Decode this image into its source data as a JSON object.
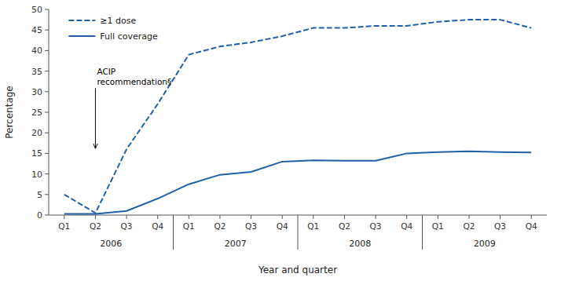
{
  "chart_data": {
    "type": "line",
    "categories": [
      "Q1",
      "Q2",
      "Q3",
      "Q4",
      "Q1",
      "Q2",
      "Q3",
      "Q4",
      "Q1",
      "Q2",
      "Q3",
      "Q4",
      "Q1",
      "Q2",
      "Q3",
      "Q4"
    ],
    "category_groups": [
      {
        "label": "2006",
        "size": 4
      },
      {
        "label": "2007",
        "size": 4
      },
      {
        "label": "2008",
        "size": 4
      },
      {
        "label": "2009",
        "size": 4
      }
    ],
    "series": [
      {
        "name": "≥1 dose",
        "color": "#2060a8",
        "line_style": "dashed",
        "values": [
          5.0,
          0.5,
          16.0,
          27.0,
          39.0,
          41.0,
          42.0,
          43.5,
          45.5,
          45.5,
          46.0,
          46.0,
          47.0,
          47.5,
          47.5,
          45.5
        ]
      },
      {
        "name": "Full coverage",
        "color": "#2060a8",
        "line_style": "solid",
        "values": [
          0.3,
          0.3,
          1.0,
          4.0,
          7.5,
          9.8,
          10.5,
          13.0,
          13.3,
          13.2,
          13.2,
          15.0,
          15.3,
          15.5,
          15.3,
          15.2
        ]
      }
    ],
    "ylim": [
      0,
      50
    ],
    "yticks": [
      0,
      5,
      10,
      15,
      20,
      25,
      30,
      35,
      40,
      45,
      50
    ],
    "ylabel": "Percentage",
    "xlabel": "Year and quarter",
    "annotations": [
      {
        "text": "ACIP\nrecommendation§",
        "x": 1,
        "y": 16
      }
    ],
    "legend": "upper left",
    "grid": false
  }
}
